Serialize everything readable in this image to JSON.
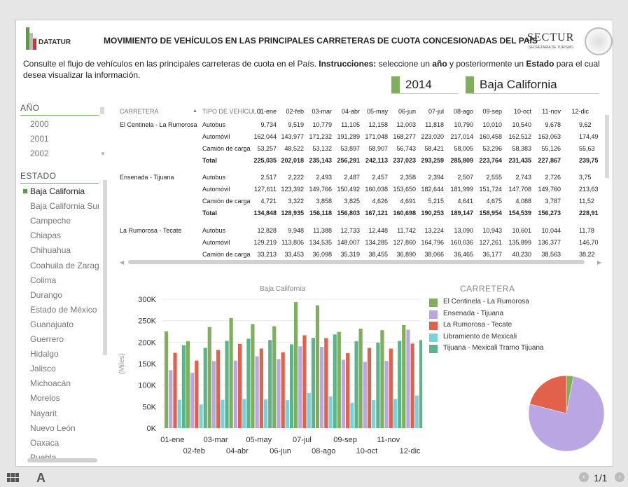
{
  "header": {
    "brand": "DATATUR",
    "title": "MOVIMIENTO DE VEHÍCULOS EN LAS PRINCIPALES CARRETERAS DE CUOTA CONCESIONADAS DEL PAÍS",
    "sectur": "SECTUR",
    "sectur_sub": "SECRETARÍA DE TURISMO"
  },
  "intro": {
    "p1": "Consulte el flujo de vehículos en las principales carreteras de cuota en el País. ",
    "b1": "Instrucciones:",
    "p2": " seleccione un ",
    "b2": "año",
    "p3": " y posteriormente un ",
    "b3": "Estado",
    "p4": " para el cual desea visualizar la información."
  },
  "selected": {
    "year": "2014",
    "state": "Baja California"
  },
  "year_panel": {
    "heading": "AÑO",
    "items": [
      "2000",
      "2001",
      "2002"
    ]
  },
  "state_panel": {
    "heading": "ESTADO",
    "items": [
      "Baja California",
      "Baja California Sur",
      "Campeche",
      "Chiapas",
      "Chihuahua",
      "Coahuila de Zaragoza",
      "Colima",
      "Durango",
      "Estado de México",
      "Guanajuato",
      "Guerrero",
      "Hidalgo",
      "Jalisco",
      "Michoacán",
      "Morelos",
      "Nayarit",
      "Nuevo León",
      "Oaxaca",
      "Puebla"
    ]
  },
  "table": {
    "headers": [
      "CARRETERA",
      "TIPO DE VEHÍCULO",
      "01-ene",
      "02-feb",
      "03-mar",
      "04-abr",
      "05-may",
      "06-jun",
      "07-jul",
      "08-ago",
      "09-sep",
      "10-oct",
      "11-nov",
      "12-dic"
    ],
    "rows": [
      {
        "road": "El Centinela - La Rumorosa",
        "type": "Autobus",
        "vals": [
          "9,734",
          "9,519",
          "10,779",
          "11,105",
          "12,158",
          "12,003",
          "11,818",
          "10,790",
          "10,010",
          "10,540",
          "9,678",
          "9,62"
        ]
      },
      {
        "road": "",
        "type": "Automóvil",
        "vals": [
          "162,044",
          "143,977",
          "171,232",
          "191,289",
          "171,048",
          "168,277",
          "223,020",
          "217,014",
          "160,458",
          "162,512",
          "163,063",
          "174,49"
        ]
      },
      {
        "road": "",
        "type": "Camión de carga",
        "vals": [
          "53,257",
          "48,522",
          "53,132",
          "53,897",
          "58,907",
          "56,743",
          "58,421",
          "58,005",
          "53,296",
          "58,383",
          "55,126",
          "55,63"
        ]
      },
      {
        "road": "",
        "type": "Total",
        "total": true,
        "vals": [
          "225,035",
          "202,018",
          "235,143",
          "256,291",
          "242,113",
          "237,023",
          "293,259",
          "285,809",
          "223,764",
          "231,435",
          "227,867",
          "239,75"
        ]
      },
      {
        "road": "Ensenada - Tijuana",
        "type": "Autobus",
        "vals": [
          "2,517",
          "2,222",
          "2,493",
          "2,487",
          "2,457",
          "2,358",
          "2,394",
          "2,507",
          "2,555",
          "2,743",
          "2,726",
          "3,75"
        ]
      },
      {
        "road": "",
        "type": "Automóvil",
        "vals": [
          "127,611",
          "123,392",
          "149,766",
          "150,492",
          "160,038",
          "153,650",
          "182,644",
          "181,999",
          "151,724",
          "147,708",
          "149,760",
          "213,63"
        ]
      },
      {
        "road": "",
        "type": "Camión de carga",
        "vals": [
          "4,721",
          "3,322",
          "3,858",
          "3,825",
          "4,626",
          "4,691",
          "5,215",
          "4,641",
          "4,675",
          "4,088",
          "3,787",
          "11,52"
        ]
      },
      {
        "road": "",
        "type": "Total",
        "total": true,
        "vals": [
          "134,848",
          "128,935",
          "156,118",
          "156,803",
          "167,121",
          "160,698",
          "190,253",
          "189,147",
          "158,954",
          "154,539",
          "156,273",
          "228,91"
        ]
      },
      {
        "road": "La Rumorosa - Tecate",
        "type": "Autobus",
        "vals": [
          "12,828",
          "9,948",
          "11,388",
          "12,733",
          "12,448",
          "11,742",
          "13,224",
          "13,090",
          "10,943",
          "10,601",
          "10,044",
          "11,78"
        ]
      },
      {
        "road": "",
        "type": "Automóvil",
        "vals": [
          "129,219",
          "113,806",
          "134,535",
          "148,007",
          "134,285",
          "127,860",
          "164,796",
          "160,036",
          "127,261",
          "135,899",
          "136,377",
          "146,70"
        ]
      },
      {
        "road": "",
        "type": "Camión de carga",
        "vals": [
          "33,213",
          "33,453",
          "36,098",
          "35,319",
          "38,455",
          "36,890",
          "38,066",
          "36,465",
          "36,177",
          "40,230",
          "38,563",
          "38,22"
        ]
      }
    ]
  },
  "chart_data": {
    "type": "bar",
    "title": "Baja California",
    "ylabel": "(Miles)",
    "ylim": [
      0,
      300000
    ],
    "yticks": [
      "0K",
      "50K",
      "100K",
      "150K",
      "200K",
      "250K",
      "300K"
    ],
    "categories": [
      "01-ene",
      "02-feb",
      "03-mar",
      "04-abr",
      "05-may",
      "06-jun",
      "07-jul",
      "08-ago",
      "09-sep",
      "10-oct",
      "11-nov",
      "12-dic"
    ],
    "legend_title": "CARRETERA",
    "series": [
      {
        "name": "El Centinela - La Rumorosa",
        "color": "#7fae5c",
        "values": [
          225035,
          202018,
          235143,
          256291,
          242113,
          237023,
          293259,
          285809,
          223764,
          231435,
          227867,
          239750
        ]
      },
      {
        "name": "Ensenada - Tijuana",
        "color": "#b9a6e3",
        "values": [
          134848,
          128935,
          156118,
          156803,
          167121,
          160698,
          190253,
          189147,
          158954,
          154539,
          156273,
          228910
        ]
      },
      {
        "name": "La Rumorosa - Tecate",
        "color": "#e2614b",
        "values": [
          175260,
          157207,
          182021,
          196059,
          185188,
          176492,
          216086,
          209591,
          174381,
          186730,
          184984,
          196710
        ]
      },
      {
        "name": "Libramiento de Mexicali",
        "color": "#77d2dc",
        "values": [
          66000,
          55000,
          66000,
          68000,
          67000,
          65000,
          82000,
          74000,
          59000,
          65000,
          68000,
          76000
        ]
      },
      {
        "name": "Tijuana - Mexicali Tramo Tijuana",
        "color": "#5db38a",
        "values": [
          193000,
          187000,
          203000,
          208000,
          205000,
          195000,
          210000,
          218000,
          202000,
          199000,
          203000,
          205000
        ]
      }
    ],
    "pie": [
      {
        "name": "El Centinela - La Rumorosa",
        "color": "#7fae5c",
        "value": 3
      },
      {
        "name": "Ensenada - Tijuana",
        "color": "#b9a6e3",
        "value": 76
      },
      {
        "name": "La Rumorosa - Tecate",
        "color": "#e2614b",
        "value": 21
      }
    ]
  },
  "footer": {
    "page": "1/1",
    "text_icon": "A"
  }
}
